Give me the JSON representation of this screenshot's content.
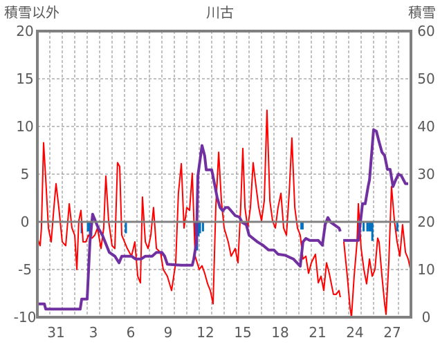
{
  "chart_data": {
    "type": "line",
    "title": "川古",
    "ylabel_left": "積雪以外",
    "ylabel_right": "積雪",
    "ylim_left": [
      -10,
      20
    ],
    "ylim_right": [
      0,
      60
    ],
    "yticks_left": [
      "20",
      "15",
      "10",
      "5",
      "0",
      "-5",
      "-10"
    ],
    "yticks_right": [
      "60",
      "50",
      "40",
      "30",
      "20",
      "10",
      "0"
    ],
    "xlim_days": [
      0,
      30
    ],
    "xticks": [
      {
        "t": 1.5,
        "label": "31"
      },
      {
        "t": 4.5,
        "label": "3"
      },
      {
        "t": 7.5,
        "label": "6"
      },
      {
        "t": 10.5,
        "label": "9"
      },
      {
        "t": 13.5,
        "label": "12"
      },
      {
        "t": 16.5,
        "label": "15"
      },
      {
        "t": 19.5,
        "label": "18"
      },
      {
        "t": 22.5,
        "label": "21"
      },
      {
        "t": 25.5,
        "label": "24"
      },
      {
        "t": 28.5,
        "label": "27"
      }
    ],
    "grid": true,
    "colors": {
      "red": "#ff0000",
      "purple": "#7030a0",
      "blue": "#0070c0",
      "axis": "#808080"
    },
    "series": [
      {
        "name": "red",
        "axis": "left",
        "points": [
          [
            0,
            -1.7
          ],
          [
            0.22,
            -2.5
          ],
          [
            0.33,
            -0.65
          ],
          [
            0.5,
            8.3
          ],
          [
            0.67,
            4.5
          ],
          [
            0.89,
            -0.65
          ],
          [
            1.11,
            -2.1
          ],
          [
            1.33,
            1.5
          ],
          [
            1.5,
            4.0
          ],
          [
            1.72,
            1.5
          ],
          [
            2,
            -2.1
          ],
          [
            2.28,
            -2.5
          ],
          [
            2.56,
            1.9
          ],
          [
            2.78,
            -0.65
          ],
          [
            3,
            -1.4
          ],
          [
            3.17,
            -5
          ],
          [
            3.33,
            0.1
          ],
          [
            3.5,
            1.2
          ],
          [
            3.67,
            -2.1
          ],
          [
            3.89,
            -2.1
          ],
          [
            4.11,
            -1.4
          ],
          [
            4.39,
            -1.7
          ],
          [
            4.61,
            -1.4
          ],
          [
            4.83,
            -0.65
          ],
          [
            5.11,
            -2.8
          ],
          [
            5.33,
            -0.65
          ],
          [
            5.5,
            4.8
          ],
          [
            5.72,
            0.1
          ],
          [
            6,
            -2.5
          ],
          [
            6.22,
            -2.8
          ],
          [
            6.44,
            6.2
          ],
          [
            6.61,
            5.8
          ],
          [
            6.78,
            -1.4
          ],
          [
            7,
            -2.1
          ],
          [
            7.22,
            -2.8
          ],
          [
            7.56,
            -3.6
          ],
          [
            7.83,
            -2.1
          ],
          [
            8.06,
            -5.7
          ],
          [
            8.28,
            -6.4
          ],
          [
            8.44,
            2.6
          ],
          [
            8.67,
            -2.1
          ],
          [
            8.89,
            -2.8
          ],
          [
            9.11,
            -1.4
          ],
          [
            9.33,
            1.5
          ],
          [
            9.56,
            -2.8
          ],
          [
            9.89,
            -3.2
          ],
          [
            10.11,
            -5
          ],
          [
            10.44,
            -5.7
          ],
          [
            10.78,
            -7.2
          ],
          [
            11.11,
            -4.3
          ],
          [
            11.33,
            3.0
          ],
          [
            11.56,
            6.1
          ],
          [
            11.78,
            -0.65
          ],
          [
            12,
            1.5
          ],
          [
            12.22,
            1.2
          ],
          [
            12.44,
            5.1
          ],
          [
            12.67,
            -3.6
          ],
          [
            13,
            -5
          ],
          [
            13.22,
            -4.6
          ],
          [
            13.44,
            -5.4
          ],
          [
            13.67,
            -6.5
          ],
          [
            13.89,
            -7.2
          ],
          [
            14.11,
            -8.6
          ],
          [
            14.33,
            1.5
          ],
          [
            14.56,
            7.3
          ],
          [
            14.78,
            2.2
          ],
          [
            15,
            -0.65
          ],
          [
            15.33,
            -2.1
          ],
          [
            15.56,
            -3.6
          ],
          [
            15.89,
            -2.8
          ],
          [
            16.11,
            -4.3
          ],
          [
            16.33,
            1.5
          ],
          [
            16.5,
            7.7
          ],
          [
            16.67,
            1.5
          ],
          [
            16.89,
            -0.65
          ],
          [
            17.11,
            1.5
          ],
          [
            17.33,
            6.2
          ],
          [
            17.56,
            3.7
          ],
          [
            17.78,
            1.5
          ],
          [
            18,
            0.1
          ],
          [
            18.22,
            2.2
          ],
          [
            18.44,
            11.7
          ],
          [
            18.67,
            2.2
          ],
          [
            18.89,
            0.1
          ],
          [
            19.11,
            -0.65
          ],
          [
            19.33,
            1.5
          ],
          [
            19.56,
            3.0
          ],
          [
            19.78,
            -0.65
          ],
          [
            20,
            -1.4
          ],
          [
            20.22,
            3.0
          ],
          [
            20.44,
            8.8
          ],
          [
            20.67,
            1.5
          ],
          [
            20.89,
            -0.65
          ],
          [
            21.11,
            -1.4
          ],
          [
            21.33,
            -3.9
          ],
          [
            21.56,
            -3.6
          ],
          [
            21.78,
            -5.4
          ],
          [
            22,
            -4.3
          ],
          [
            22.33,
            -3.4
          ],
          [
            22.56,
            -6.4
          ],
          [
            22.78,
            -5.7
          ],
          [
            23,
            -7.2
          ],
          [
            23.22,
            -4.3
          ],
          [
            23.44,
            -5.4
          ],
          [
            23.78,
            -7.6
          ],
          [
            24,
            -7.6
          ],
          [
            24.22,
            -7.2
          ],
          [
            24.33,
            -7.9
          ],
          null,
          [
            24.61,
            -2.1
          ],
          [
            24.89,
            -5.7
          ],
          [
            25.11,
            -9.0
          ],
          [
            25.22,
            -10
          ],
          [
            25.44,
            -5.7
          ],
          [
            25.67,
            -2.1
          ],
          [
            25.78,
            1.9
          ],
          [
            26,
            -2.8
          ],
          [
            26.22,
            -5
          ],
          [
            26.44,
            -6.5
          ],
          [
            26.67,
            -3.9
          ],
          [
            26.89,
            -5.7
          ],
          [
            27.11,
            -5
          ],
          [
            27.33,
            -1.7
          ],
          [
            27.44,
            -2.1
          ],
          [
            27.67,
            -5.7
          ],
          [
            27.89,
            -8.6
          ],
          [
            28,
            -9.7
          ],
          [
            28.22,
            -4.3
          ],
          [
            28.44,
            3.7
          ],
          [
            28.67,
            0.1
          ],
          [
            28.89,
            -2.1
          ],
          [
            29.11,
            -3.6
          ],
          [
            29.33,
            -0.3
          ],
          [
            29.56,
            -3.2
          ],
          [
            29.78,
            -3.9
          ],
          [
            30,
            -5.2
          ]
        ]
      },
      {
        "name": "purple",
        "axis": "right",
        "points": [
          [
            0,
            2.8
          ],
          [
            0.56,
            2.8
          ],
          [
            0.67,
            1.7
          ],
          [
            3.44,
            1.7
          ],
          [
            3.56,
            3.8
          ],
          [
            4,
            3.8
          ],
          [
            4.22,
            15.8
          ],
          [
            4.44,
            21.6
          ],
          [
            4.67,
            20.1
          ],
          [
            4.89,
            18.7
          ],
          [
            5.22,
            17.2
          ],
          [
            5.44,
            15.8
          ],
          [
            5.78,
            13.6
          ],
          [
            6.22,
            12.8
          ],
          [
            6.56,
            11.4
          ],
          [
            6.78,
            12.8
          ],
          [
            7.56,
            12.8
          ],
          [
            7.89,
            12.2
          ],
          [
            8.33,
            12.2
          ],
          [
            8.67,
            12.8
          ],
          [
            9.22,
            12.8
          ],
          [
            9.56,
            13.6
          ],
          [
            10,
            13.6
          ],
          [
            10.22,
            12.8
          ],
          [
            10.44,
            11.1
          ],
          [
            11.56,
            10.9
          ],
          [
            12.44,
            10.9
          ],
          [
            12.56,
            12.2
          ],
          [
            12.78,
            15.8
          ],
          [
            12.89,
            29.6
          ],
          [
            13.22,
            36
          ],
          [
            13.44,
            33.8
          ],
          [
            13.56,
            30.9
          ],
          [
            14,
            30.9
          ],
          [
            14.22,
            28
          ],
          [
            14.44,
            25.1
          ],
          [
            14.67,
            23
          ],
          [
            14.89,
            22.3
          ],
          [
            15.11,
            23
          ],
          [
            15.33,
            23
          ],
          [
            15.56,
            22.3
          ],
          [
            15.89,
            21.3
          ],
          [
            16.22,
            21
          ],
          [
            16.44,
            19.9
          ],
          [
            16.78,
            19.4
          ],
          [
            17,
            17.2
          ],
          [
            17.33,
            16.5
          ],
          [
            17.67,
            15.8
          ],
          [
            18.11,
            15.1
          ],
          [
            18.56,
            14.1
          ],
          [
            19,
            14.1
          ],
          [
            19.33,
            13.2
          ],
          [
            19.89,
            13
          ],
          [
            20.56,
            12.2
          ],
          [
            21.11,
            10.7
          ],
          [
            21.33,
            15.8
          ],
          [
            21.56,
            16.5
          ],
          [
            21.89,
            16.1
          ],
          [
            22.56,
            16.1
          ],
          [
            22.89,
            15.1
          ],
          [
            23.11,
            19.4
          ],
          [
            23.33,
            20.9
          ],
          [
            23.56,
            19.9
          ],
          [
            23.89,
            19.3
          ],
          [
            24.22,
            18.7
          ],
          [
            24.33,
            18
          ],
          null,
          [
            24.56,
            16.1
          ],
          [
            25.78,
            16.1
          ],
          [
            25.89,
            18.7
          ],
          [
            26.11,
            23.8
          ],
          [
            26.33,
            23.8
          ],
          [
            26.56,
            27.4
          ],
          [
            26.67,
            28.8
          ],
          [
            27,
            39.3
          ],
          [
            27.22,
            39
          ],
          [
            27.44,
            36.8
          ],
          [
            27.67,
            34.6
          ],
          [
            27.89,
            33.9
          ],
          [
            28.11,
            31
          ],
          [
            28.33,
            31
          ],
          [
            28.56,
            27.4
          ],
          [
            28.78,
            28.8
          ],
          [
            29,
            30
          ],
          [
            29.22,
            29.7
          ],
          [
            29.56,
            28
          ],
          [
            29.78,
            28
          ]
        ]
      },
      {
        "name": "blue",
        "axis": "left",
        "type": "bar",
        "points": [
          [
            3.56,
            -1.2
          ],
          [
            4.06,
            -1
          ],
          [
            4.22,
            -2.1
          ],
          [
            4.33,
            -1.5
          ],
          [
            7.11,
            -1.2
          ],
          [
            12.7,
            -1.5
          ],
          [
            12.83,
            -3
          ],
          [
            12.94,
            -1.5
          ],
          [
            13.06,
            -1.2
          ],
          [
            13.3,
            -1
          ],
          [
            21.2,
            -0.8
          ],
          [
            21.3,
            -0.8
          ],
          [
            23.1,
            -0.8
          ],
          [
            25.83,
            -1
          ],
          [
            26.2,
            -1
          ],
          [
            26.5,
            -1
          ],
          [
            26.67,
            -1
          ],
          [
            26.78,
            -1
          ],
          [
            26.9,
            -2
          ],
          [
            28.9,
            -1
          ]
        ]
      }
    ]
  }
}
